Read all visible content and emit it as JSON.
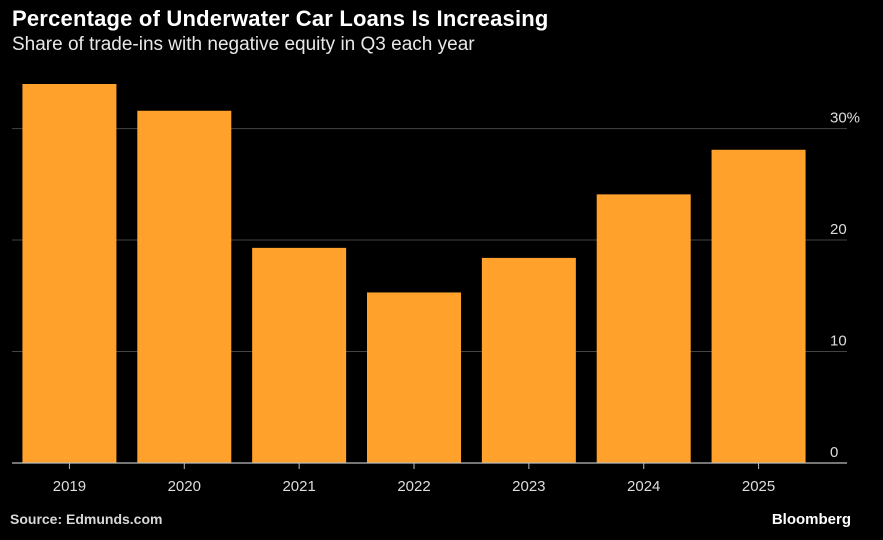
{
  "chart_data": {
    "type": "bar",
    "title": "Percentage of Underwater Car Loans Is Increasing",
    "subtitle": "Share of trade-ins with negative equity in Q3 each year",
    "categories": [
      "2019",
      "2020",
      "2021",
      "2022",
      "2023",
      "2024",
      "2025"
    ],
    "values": [
      34,
      31.6,
      19.3,
      15.3,
      18.4,
      24.1,
      28.1
    ],
    "xlabel": "",
    "ylabel": "",
    "ylim": [
      0,
      34
    ],
    "yticks": [
      0,
      10,
      20,
      30
    ],
    "ytick_labels": [
      "0",
      "10",
      "20",
      "30%"
    ],
    "grid": true,
    "bar_color": "#ffa12b"
  },
  "footer": {
    "source": "Source: Edmunds.com",
    "brand": "Bloomberg"
  },
  "colors": {
    "background": "#000000",
    "grid": "#444444",
    "axis": "#bbbbbb",
    "tick_text": "#dddddd"
  }
}
